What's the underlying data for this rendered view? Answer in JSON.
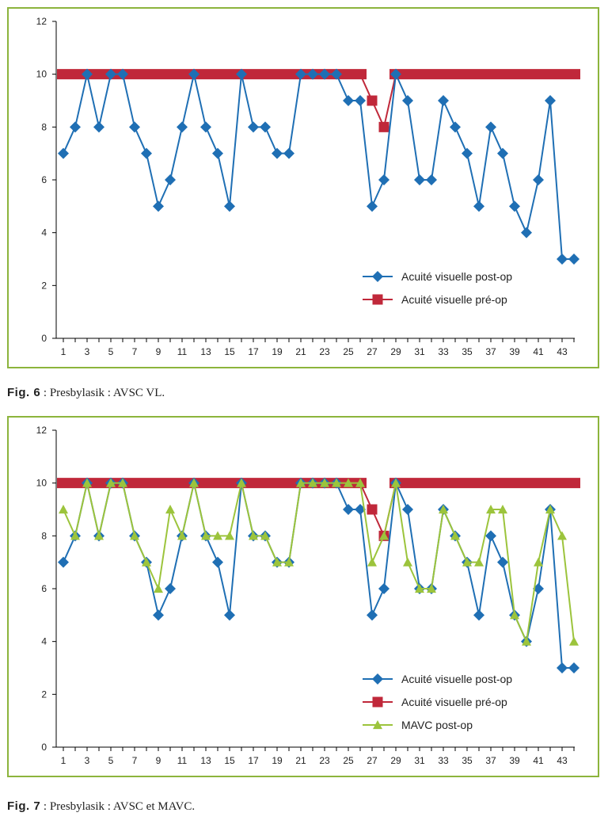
{
  "figures": [
    {
      "caption_label": "Fig. 6",
      "caption_sep": " : ",
      "caption_text": "Presbylasik : AVSC VL."
    },
    {
      "caption_label": "Fig. 7",
      "caption_sep": " : ",
      "caption_text": "Presbylasik : AVSC et MAVC."
    }
  ],
  "colors": {
    "post_op": "#1f6fb4",
    "pre_op": "#c0283a",
    "mavc": "#9cc43c",
    "frame": "#8cb43c"
  },
  "chart_data": [
    {
      "type": "line",
      "title": "",
      "xlabel": "",
      "ylabel": "",
      "x": [
        1,
        2,
        3,
        4,
        5,
        6,
        7,
        8,
        9,
        10,
        11,
        12,
        13,
        14,
        15,
        16,
        17,
        18,
        19,
        20,
        21,
        22,
        23,
        24,
        25,
        26,
        27,
        28,
        29,
        30,
        31,
        32,
        33,
        34,
        35,
        36,
        37,
        38,
        39,
        40,
        41,
        42,
        43,
        44
      ],
      "x_tick_labels": [
        "1",
        "3",
        "5",
        "7",
        "9",
        "11",
        "13",
        "15",
        "17",
        "19",
        "21",
        "23",
        "25",
        "27",
        "29",
        "31",
        "33",
        "35",
        "37",
        "39",
        "41",
        "43"
      ],
      "ylim": [
        0,
        12
      ],
      "y_ticks": [
        0,
        2,
        4,
        6,
        8,
        10,
        12
      ],
      "grid": false,
      "legend_position": "bottom-right",
      "series": [
        {
          "name": "Acuité visuelle post-op",
          "marker": "diamond",
          "values": [
            7,
            8,
            10,
            8,
            10,
            10,
            8,
            7,
            5,
            6,
            8,
            10,
            8,
            7,
            5,
            10,
            8,
            8,
            7,
            7,
            10,
            10,
            10,
            10,
            9,
            9,
            5,
            6,
            10,
            9,
            6,
            6,
            9,
            8,
            7,
            5,
            8,
            7,
            5,
            4,
            6,
            9,
            3,
            3
          ]
        },
        {
          "name": "Acuité visuelle pré-op",
          "marker": "square",
          "values": [
            10,
            10,
            10,
            10,
            10,
            10,
            10,
            10,
            10,
            10,
            10,
            10,
            10,
            10,
            10,
            10,
            10,
            10,
            10,
            10,
            10,
            10,
            10,
            10,
            10,
            10,
            9,
            8,
            10,
            10,
            10,
            10,
            10,
            10,
            10,
            10,
            10,
            10,
            10,
            10,
            10,
            10,
            10,
            10
          ]
        }
      ]
    },
    {
      "type": "line",
      "title": "",
      "xlabel": "",
      "ylabel": "",
      "x": [
        1,
        2,
        3,
        4,
        5,
        6,
        7,
        8,
        9,
        10,
        11,
        12,
        13,
        14,
        15,
        16,
        17,
        18,
        19,
        20,
        21,
        22,
        23,
        24,
        25,
        26,
        27,
        28,
        29,
        30,
        31,
        32,
        33,
        34,
        35,
        36,
        37,
        38,
        39,
        40,
        41,
        42,
        43,
        44
      ],
      "x_tick_labels": [
        "1",
        "3",
        "5",
        "7",
        "9",
        "11",
        "13",
        "15",
        "17",
        "19",
        "21",
        "23",
        "25",
        "27",
        "29",
        "31",
        "33",
        "35",
        "37",
        "39",
        "41",
        "43"
      ],
      "ylim": [
        0,
        12
      ],
      "y_ticks": [
        0,
        2,
        4,
        6,
        8,
        10,
        12
      ],
      "grid": false,
      "legend_position": "bottom-right",
      "series": [
        {
          "name": "Acuité visuelle post-op",
          "marker": "diamond",
          "values": [
            7,
            8,
            10,
            8,
            10,
            10,
            8,
            7,
            5,
            6,
            8,
            10,
            8,
            7,
            5,
            10,
            8,
            8,
            7,
            7,
            10,
            10,
            10,
            10,
            9,
            9,
            5,
            6,
            10,
            9,
            6,
            6,
            9,
            8,
            7,
            5,
            8,
            7,
            5,
            4,
            6,
            9,
            3,
            3
          ]
        },
        {
          "name": "Acuité visuelle pré-op",
          "marker": "square",
          "values": [
            10,
            10,
            10,
            10,
            10,
            10,
            10,
            10,
            10,
            10,
            10,
            10,
            10,
            10,
            10,
            10,
            10,
            10,
            10,
            10,
            10,
            10,
            10,
            10,
            10,
            10,
            9,
            8,
            10,
            10,
            10,
            10,
            10,
            10,
            10,
            10,
            10,
            10,
            10,
            10,
            10,
            10,
            10,
            10
          ]
        },
        {
          "name": "MAVC post-op",
          "marker": "triangle",
          "values": [
            9,
            8,
            10,
            8,
            10,
            10,
            8,
            7,
            6,
            9,
            8,
            10,
            8,
            8,
            8,
            10,
            8,
            8,
            7,
            7,
            10,
            10,
            10,
            10,
            10,
            10,
            7,
            8,
            10,
            7,
            6,
            6,
            9,
            8,
            7,
            7,
            9,
            9,
            5,
            4,
            7,
            9,
            8,
            4
          ]
        }
      ]
    }
  ]
}
